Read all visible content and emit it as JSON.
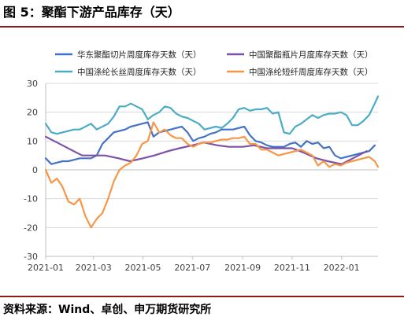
{
  "figure": {
    "title": "图 5：聚酯下游产品库存（天）",
    "source": "资料来源：Wind、卓创、申万期货研究所"
  },
  "colors": {
    "accent_rule": "#8e1a1a",
    "grid": "#d9d9d9",
    "axis": "#bfbfbf"
  },
  "chart_data": {
    "type": "line",
    "title": "",
    "xlabel": "",
    "ylabel": "",
    "ylim": [
      -30,
      30
    ],
    "yticks": [
      -30,
      -20,
      -10,
      0,
      10,
      20,
      30
    ],
    "x_start": "2021-01-01",
    "x_end": "2022-02-15",
    "xtick_labels": [
      "2021-01",
      "2021-03",
      "2021-05",
      "2021-07",
      "2021-09",
      "2021-11",
      "2022-01"
    ],
    "grid": "horizontal",
    "legend_position": "top",
    "series": [
      {
        "name": "华东聚酯切片周度库存天数（天）",
        "color": "#4472c4",
        "points": [
          [
            "2021-01-01",
            4
          ],
          [
            "2021-01-08",
            2
          ],
          [
            "2021-01-15",
            2.5
          ],
          [
            "2021-01-22",
            3
          ],
          [
            "2021-01-29",
            3
          ],
          [
            "2021-02-05",
            3.5
          ],
          [
            "2021-02-12",
            4
          ],
          [
            "2021-02-19",
            4
          ],
          [
            "2021-02-26",
            4
          ],
          [
            "2021-03-05",
            5
          ],
          [
            "2021-03-12",
            9
          ],
          [
            "2021-03-19",
            11
          ],
          [
            "2021-03-26",
            13
          ],
          [
            "2021-04-02",
            13.5
          ],
          [
            "2021-04-09",
            14
          ],
          [
            "2021-04-16",
            15
          ],
          [
            "2021-04-23",
            15.5
          ],
          [
            "2021-04-30",
            16
          ],
          [
            "2021-05-07",
            16.5
          ],
          [
            "2021-05-14",
            11.5
          ],
          [
            "2021-05-21",
            13
          ],
          [
            "2021-05-28",
            13.5
          ],
          [
            "2021-06-04",
            14
          ],
          [
            "2021-06-11",
            14.5
          ],
          [
            "2021-06-18",
            15
          ],
          [
            "2021-06-25",
            13
          ],
          [
            "2021-07-02",
            10
          ],
          [
            "2021-07-09",
            11
          ],
          [
            "2021-07-16",
            11.5
          ],
          [
            "2021-07-23",
            12.5
          ],
          [
            "2021-07-30",
            13
          ],
          [
            "2021-08-06",
            14
          ],
          [
            "2021-08-13",
            14
          ],
          [
            "2021-08-20",
            14
          ],
          [
            "2021-08-27",
            14.5
          ],
          [
            "2021-09-03",
            15
          ],
          [
            "2021-09-10",
            12
          ],
          [
            "2021-09-17",
            10
          ],
          [
            "2021-09-24",
            9.5
          ],
          [
            "2021-10-01",
            8.5
          ],
          [
            "2021-10-08",
            8
          ],
          [
            "2021-10-15",
            8
          ],
          [
            "2021-10-22",
            8
          ],
          [
            "2021-10-29",
            9
          ],
          [
            "2021-11-05",
            9.5
          ],
          [
            "2021-11-12",
            8
          ],
          [
            "2021-11-19",
            10
          ],
          [
            "2021-11-26",
            9
          ],
          [
            "2021-12-03",
            9.5
          ],
          [
            "2021-12-10",
            7.5
          ],
          [
            "2021-12-17",
            8
          ],
          [
            "2021-12-24",
            5
          ],
          [
            "2021-12-31",
            4
          ],
          [
            "2022-01-07",
            4.5
          ],
          [
            "2022-01-14",
            5
          ],
          [
            "2022-01-21",
            5.5
          ],
          [
            "2022-01-28",
            6
          ],
          [
            "2022-02-04",
            6.5
          ],
          [
            "2022-02-11",
            8.5
          ]
        ]
      },
      {
        "name": "中国聚酯瓶片月度库存天数（天）",
        "color": "#7b52a8",
        "points": [
          [
            "2021-01-01",
            11.5
          ],
          [
            "2021-01-15",
            9.5
          ],
          [
            "2021-02-01",
            7
          ],
          [
            "2021-02-15",
            5
          ],
          [
            "2021-03-01",
            5
          ],
          [
            "2021-03-15",
            5
          ],
          [
            "2021-04-01",
            4
          ],
          [
            "2021-04-15",
            3
          ],
          [
            "2021-05-01",
            4
          ],
          [
            "2021-05-15",
            5
          ],
          [
            "2021-06-01",
            6.5
          ],
          [
            "2021-06-15",
            7.5
          ],
          [
            "2021-07-01",
            8.5
          ],
          [
            "2021-07-15",
            9.5
          ],
          [
            "2021-08-01",
            8.5
          ],
          [
            "2021-08-15",
            8
          ],
          [
            "2021-09-01",
            8
          ],
          [
            "2021-09-15",
            8.5
          ],
          [
            "2021-10-01",
            7.5
          ],
          [
            "2021-10-15",
            7.5
          ],
          [
            "2021-11-01",
            7.5
          ],
          [
            "2021-11-15",
            6
          ],
          [
            "2021-12-01",
            4
          ],
          [
            "2021-12-15",
            3
          ],
          [
            "2022-01-01",
            2
          ],
          [
            "2022-01-15",
            4
          ],
          [
            "2022-02-01",
            6.5
          ]
        ]
      },
      {
        "name": "中国涤纶长丝周度库存天数（天）",
        "color": "#4bacc6",
        "points": [
          [
            "2021-01-01",
            16
          ],
          [
            "2021-01-08",
            13
          ],
          [
            "2021-01-15",
            12.5
          ],
          [
            "2021-01-22",
            13
          ],
          [
            "2021-01-29",
            13.5
          ],
          [
            "2021-02-05",
            14
          ],
          [
            "2021-02-12",
            14
          ],
          [
            "2021-02-19",
            15
          ],
          [
            "2021-02-26",
            16
          ],
          [
            "2021-03-05",
            14
          ],
          [
            "2021-03-12",
            15
          ],
          [
            "2021-03-19",
            16
          ],
          [
            "2021-03-26",
            18.5
          ],
          [
            "2021-04-02",
            22
          ],
          [
            "2021-04-09",
            22
          ],
          [
            "2021-04-16",
            23
          ],
          [
            "2021-04-23",
            22
          ],
          [
            "2021-04-30",
            21
          ],
          [
            "2021-05-07",
            17.5
          ],
          [
            "2021-05-14",
            19
          ],
          [
            "2021-05-21",
            20
          ],
          [
            "2021-05-28",
            22
          ],
          [
            "2021-06-04",
            21.5
          ],
          [
            "2021-06-11",
            19.5
          ],
          [
            "2021-06-18",
            18.5
          ],
          [
            "2021-06-25",
            18
          ],
          [
            "2021-07-02",
            17
          ],
          [
            "2021-07-09",
            16
          ],
          [
            "2021-07-16",
            14
          ],
          [
            "2021-07-23",
            14.5
          ],
          [
            "2021-07-30",
            15
          ],
          [
            "2021-08-06",
            14.5
          ],
          [
            "2021-08-13",
            16
          ],
          [
            "2021-08-20",
            18
          ],
          [
            "2021-08-27",
            21
          ],
          [
            "2021-09-03",
            21.5
          ],
          [
            "2021-09-10",
            20.5
          ],
          [
            "2021-09-17",
            21
          ],
          [
            "2021-09-24",
            21
          ],
          [
            "2021-10-01",
            21.5
          ],
          [
            "2021-10-08",
            19.5
          ],
          [
            "2021-10-15",
            20
          ],
          [
            "2021-10-22",
            13
          ],
          [
            "2021-10-29",
            12.5
          ],
          [
            "2021-11-05",
            15
          ],
          [
            "2021-11-12",
            16
          ],
          [
            "2021-11-19",
            17.5
          ],
          [
            "2021-11-26",
            19
          ],
          [
            "2021-12-03",
            18
          ],
          [
            "2021-12-10",
            19
          ],
          [
            "2021-12-17",
            19.5
          ],
          [
            "2021-12-24",
            19.5
          ],
          [
            "2021-12-31",
            20
          ],
          [
            "2022-01-07",
            19
          ],
          [
            "2022-01-14",
            15.5
          ],
          [
            "2022-01-21",
            15.5
          ],
          [
            "2022-01-28",
            17
          ],
          [
            "2022-02-04",
            19
          ],
          [
            "2022-02-11",
            23
          ],
          [
            "2022-02-15",
            25.5
          ]
        ]
      },
      {
        "name": "中国涤纶短纤周度库存天数（天）",
        "color": "#f79646",
        "points": [
          [
            "2021-01-01",
            0
          ],
          [
            "2021-01-08",
            -4.5
          ],
          [
            "2021-01-15",
            -3
          ],
          [
            "2021-01-22",
            -6
          ],
          [
            "2021-01-29",
            -11
          ],
          [
            "2021-02-05",
            -12
          ],
          [
            "2021-02-12",
            -10
          ],
          [
            "2021-02-19",
            -16
          ],
          [
            "2021-02-26",
            -20
          ],
          [
            "2021-03-05",
            -17
          ],
          [
            "2021-03-12",
            -15
          ],
          [
            "2021-03-19",
            -10
          ],
          [
            "2021-03-26",
            -4
          ],
          [
            "2021-04-02",
            0
          ],
          [
            "2021-04-09",
            1.5
          ],
          [
            "2021-04-16",
            2.5
          ],
          [
            "2021-04-23",
            5
          ],
          [
            "2021-04-30",
            9
          ],
          [
            "2021-05-07",
            10
          ],
          [
            "2021-05-14",
            16.5
          ],
          [
            "2021-05-21",
            13
          ],
          [
            "2021-05-28",
            14
          ],
          [
            "2021-06-04",
            12
          ],
          [
            "2021-06-11",
            11
          ],
          [
            "2021-06-18",
            11
          ],
          [
            "2021-06-25",
            9
          ],
          [
            "2021-07-02",
            8
          ],
          [
            "2021-07-09",
            9
          ],
          [
            "2021-07-16",
            9.5
          ],
          [
            "2021-07-23",
            9.5
          ],
          [
            "2021-07-30",
            10
          ],
          [
            "2021-08-06",
            10.5
          ],
          [
            "2021-08-13",
            10.5
          ],
          [
            "2021-08-20",
            11
          ],
          [
            "2021-08-27",
            11
          ],
          [
            "2021-09-03",
            11.5
          ],
          [
            "2021-09-10",
            9
          ],
          [
            "2021-09-17",
            9
          ],
          [
            "2021-09-24",
            7
          ],
          [
            "2021-10-01",
            7
          ],
          [
            "2021-10-08",
            6
          ],
          [
            "2021-10-15",
            5
          ],
          [
            "2021-10-22",
            5.5
          ],
          [
            "2021-10-29",
            6
          ],
          [
            "2021-11-05",
            6.5
          ],
          [
            "2021-11-12",
            7
          ],
          [
            "2021-11-19",
            6
          ],
          [
            "2021-11-26",
            5
          ],
          [
            "2021-12-03",
            1.5
          ],
          [
            "2021-12-10",
            3
          ],
          [
            "2021-12-17",
            1
          ],
          [
            "2021-12-24",
            2
          ],
          [
            "2021-12-31",
            1.5
          ],
          [
            "2022-01-07",
            2.5
          ],
          [
            "2022-01-14",
            3
          ],
          [
            "2022-01-21",
            3.5
          ],
          [
            "2022-01-28",
            4
          ],
          [
            "2022-02-04",
            4.5
          ],
          [
            "2022-02-11",
            3
          ],
          [
            "2022-02-15",
            1
          ]
        ]
      }
    ]
  }
}
